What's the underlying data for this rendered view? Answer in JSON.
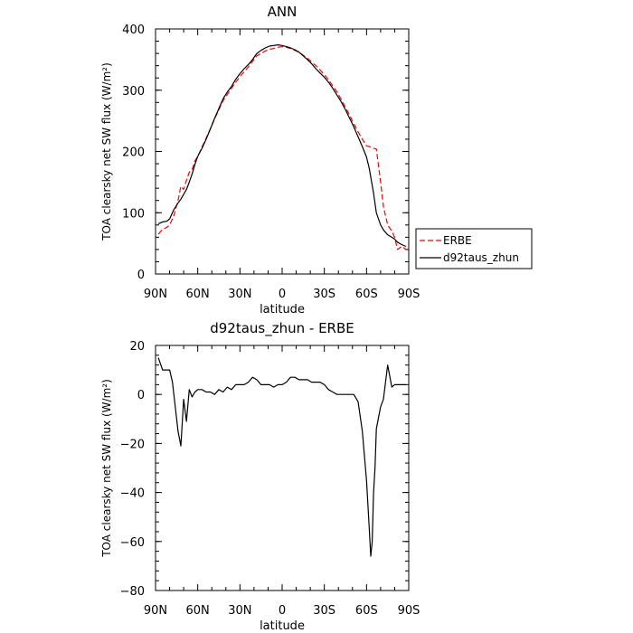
{
  "chart_data": [
    {
      "type": "line",
      "title": "ANN",
      "xlabel": "latitude",
      "ylabel": "TOA clearsky net SW flux (W/m²)",
      "xlim": [
        90,
        -90
      ],
      "ylim": [
        0,
        400
      ],
      "x_ticks": [
        {
          "v": 90,
          "label": "90N"
        },
        {
          "v": 60,
          "label": "60N"
        },
        {
          "v": 30,
          "label": "30N"
        },
        {
          "v": 0,
          "label": "0"
        },
        {
          "v": -30,
          "label": "30S"
        },
        {
          "v": -60,
          "label": "60S"
        },
        {
          "v": -90,
          "label": "90S"
        }
      ],
      "y_ticks": [
        {
          "v": 0,
          "label": "0"
        },
        {
          "v": 100,
          "label": "100"
        },
        {
          "v": 200,
          "label": "200"
        },
        {
          "v": 300,
          "label": "300"
        },
        {
          "v": 400,
          "label": "400"
        }
      ],
      "legend": "right",
      "series": [
        {
          "name": "ERBE",
          "color": "#ff0000",
          "dash": "6,3",
          "x": [
            88,
            85,
            82,
            80,
            77,
            74,
            72,
            70,
            68,
            66,
            64,
            62,
            60,
            57,
            54,
            51,
            48,
            45,
            42,
            39,
            36,
            33,
            30,
            27,
            24,
            21,
            18,
            15,
            12,
            9,
            6,
            3,
            0,
            -3,
            -6,
            -9,
            -12,
            -15,
            -18,
            -21,
            -24,
            -27,
            -30,
            -33,
            -36,
            -39,
            -42,
            -45,
            -48,
            -51,
            -54,
            -57,
            -60,
            -62,
            -65,
            -67,
            -70,
            -72,
            -75,
            -78,
            -80,
            -82,
            -85,
            -88
          ],
          "y": [
            65,
            73,
            76,
            80,
            95,
            120,
            143,
            138,
            153,
            166,
            170,
            185,
            192,
            207,
            222,
            237,
            253,
            268,
            283,
            293,
            303,
            313,
            322,
            330,
            338,
            347,
            356,
            360,
            364,
            367,
            368,
            370,
            371,
            370,
            368,
            365,
            362,
            357,
            352,
            346,
            340,
            333,
            325,
            317,
            307,
            297,
            285,
            272,
            259,
            245,
            232,
            220,
            209,
            208,
            205,
            204,
            150,
            110,
            80,
            70,
            60,
            40,
            45,
            40
          ]
        },
        {
          "name": "d92taus_zhun",
          "color": "#000000",
          "dash": "",
          "x": [
            88,
            85,
            82,
            80,
            77,
            74,
            72,
            70,
            68,
            66,
            64,
            62,
            60,
            57,
            54,
            51,
            48,
            45,
            42,
            39,
            36,
            33,
            30,
            27,
            24,
            21,
            18,
            15,
            12,
            9,
            6,
            3,
            0,
            -3,
            -6,
            -9,
            -12,
            -15,
            -18,
            -21,
            -24,
            -27,
            -30,
            -33,
            -36,
            -39,
            -42,
            -45,
            -48,
            -51,
            -54,
            -57,
            -60,
            -62,
            -65,
            -67,
            -70,
            -72,
            -75,
            -78,
            -80,
            -82,
            -85,
            -88
          ],
          "y": [
            82,
            85,
            86,
            90,
            105,
            116,
            122,
            130,
            138,
            150,
            163,
            179,
            192,
            205,
            220,
            237,
            254,
            270,
            286,
            297,
            306,
            318,
            327,
            335,
            342,
            350,
            360,
            365,
            369,
            372,
            373,
            374,
            373,
            371,
            369,
            366,
            362,
            356,
            350,
            343,
            335,
            328,
            321,
            313,
            303,
            292,
            281,
            268,
            254,
            240,
            224,
            208,
            191,
            172,
            132,
            100,
            80,
            72,
            64,
            60,
            57,
            52,
            48,
            45
          ]
        }
      ]
    },
    {
      "type": "line",
      "title": "d92taus_zhun - ERBE",
      "xlabel": "latitude",
      "ylabel": "TOA clearsky net SW flux (W/m²)",
      "xlim": [
        90,
        -90
      ],
      "ylim": [
        -80,
        20
      ],
      "x_ticks": [
        {
          "v": 90,
          "label": "90N"
        },
        {
          "v": 60,
          "label": "60N"
        },
        {
          "v": 30,
          "label": "30N"
        },
        {
          "v": 0,
          "label": "0"
        },
        {
          "v": -30,
          "label": "30S"
        },
        {
          "v": -60,
          "label": "60S"
        },
        {
          "v": -90,
          "label": "90S"
        }
      ],
      "y_ticks": [
        {
          "v": -80,
          "label": "−80"
        },
        {
          "v": -60,
          "label": "−60"
        },
        {
          "v": -40,
          "label": "−40"
        },
        {
          "v": -20,
          "label": "−20"
        },
        {
          "v": 0,
          "label": "0"
        },
        {
          "v": 20,
          "label": "20"
        }
      ],
      "series": [
        {
          "name": "",
          "color": "#000000",
          "dash": "",
          "x": [
            88,
            85,
            80,
            78,
            76,
            74,
            72,
            70,
            68,
            66,
            64,
            62,
            60,
            57,
            54,
            51,
            48,
            45,
            42,
            39,
            36,
            33,
            30,
            27,
            24,
            21,
            18,
            15,
            12,
            9,
            6,
            3,
            0,
            -3,
            -6,
            -9,
            -12,
            -15,
            -18,
            -21,
            -24,
            -27,
            -30,
            -33,
            -36,
            -39,
            -42,
            -45,
            -48,
            -51,
            -54,
            -57,
            -60,
            -62,
            -63,
            -64,
            -65,
            -66,
            -67,
            -70,
            -72,
            -75,
            -78,
            -80,
            -82,
            -85,
            -88
          ],
          "y": [
            15,
            10,
            10,
            5,
            -5,
            -15,
            -21,
            -2,
            -11,
            2,
            -1,
            1,
            2,
            2,
            1,
            1,
            0,
            2,
            1,
            3,
            2,
            4,
            4,
            4,
            5,
            7,
            6,
            4,
            4,
            4,
            3,
            4,
            4,
            5,
            7,
            7,
            6,
            6,
            6,
            5,
            5,
            5,
            4,
            2,
            1,
            0,
            0,
            0,
            0,
            0,
            -3,
            -15,
            -35,
            -55,
            -66,
            -60,
            -40,
            -30,
            -14,
            -5,
            -2,
            12,
            3,
            4,
            4,
            4,
            4
          ]
        }
      ]
    }
  ]
}
